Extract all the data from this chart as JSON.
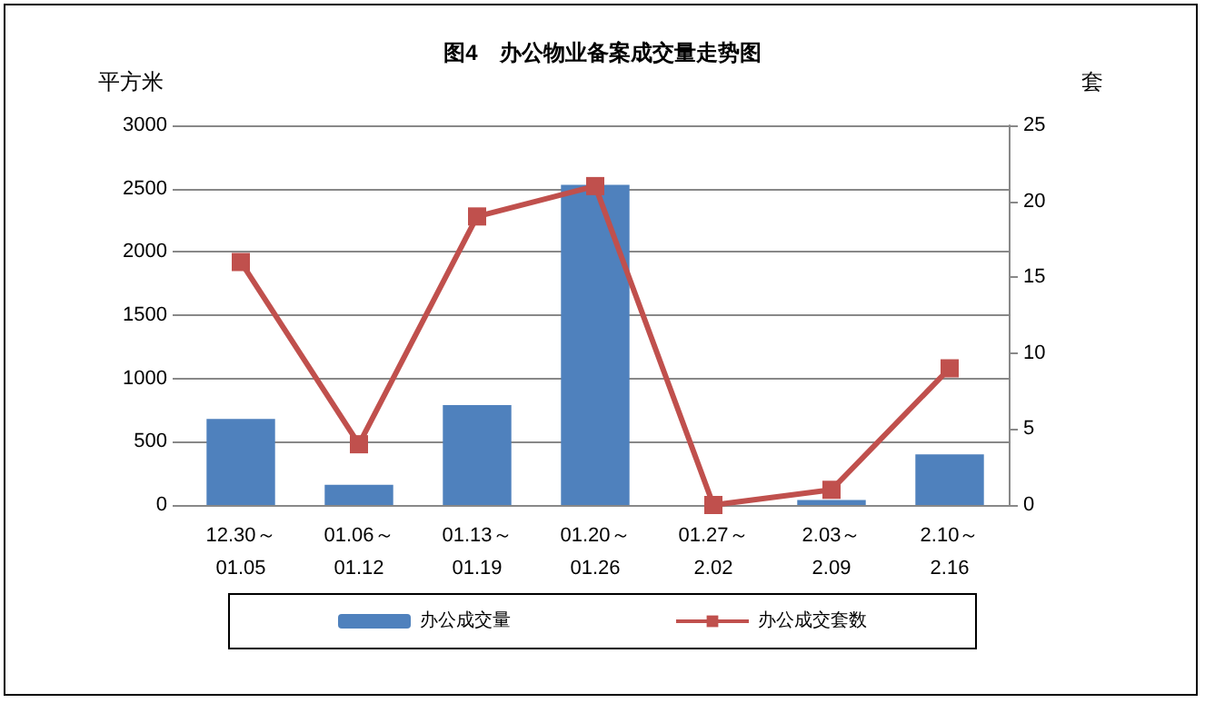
{
  "chart_data": {
    "type": "bar",
    "title": "图4　办公物业备案成交量走势图",
    "ylabel": "平方米",
    "y2label": "套",
    "categories": [
      "12.30～\n01.05",
      "01.06～\n01.12",
      "01.13～\n01.19",
      "01.20～\n01.26",
      "01.27～\n2.02",
      "2.03～\n2.09",
      "2.10～\n2.16"
    ],
    "series": [
      {
        "name": "办公成交量",
        "color": "#4f81bd",
        "values": [
          680,
          160,
          790,
          2530,
          0,
          40,
          400
        ]
      },
      {
        "name": "办公成交套数",
        "type": "line",
        "axis": "y2",
        "color": "#c0504d",
        "values": [
          16,
          4,
          19,
          21,
          0,
          1,
          9
        ]
      }
    ],
    "ylim": [
      0,
      3000
    ],
    "yticks": [
      0,
      500,
      1000,
      1500,
      2000,
      2500,
      3000
    ],
    "y2lim": [
      0,
      25
    ],
    "y2ticks": [
      0,
      5,
      10,
      15,
      20,
      25
    ],
    "grid": "y",
    "legend": "bottom",
    "marker": "square",
    "line_style": "solid"
  }
}
